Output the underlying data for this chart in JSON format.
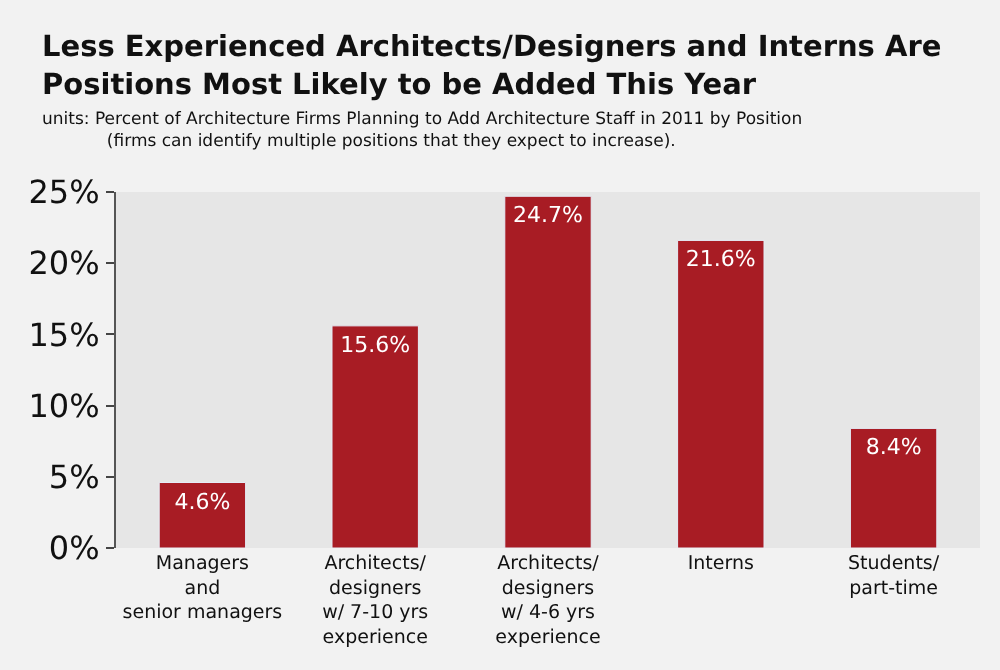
{
  "chart_data": {
    "type": "bar",
    "title": "Less Experienced Architects/Designers and Interns Are\nPositions Most Likely to be Added This Year",
    "subtitle": "units: Percent of Architecture Firms Planning to Add Architecture Staff in 2011 by Position\n(firms can identify multiple positions that they expect to increase).",
    "categories": [
      "Managers\nand\nsenior managers",
      "Architects/\ndesigners\nw/ 7-10 yrs\nexperience",
      "Architects/\ndesigners\nw/ 4-6 yrs\nexperience",
      "Interns",
      "Students/\npart-time"
    ],
    "values": [
      4.6,
      15.6,
      24.7,
      21.6,
      8.4
    ],
    "value_labels": [
      "4.6%",
      "15.6%",
      "24.7%",
      "21.6%",
      "8.4%"
    ],
    "color": "#a81c24",
    "ylim": [
      0,
      25
    ],
    "yticks": [
      {
        "value": 0,
        "label": "0%"
      },
      {
        "value": 5,
        "label": "5%"
      },
      {
        "value": 10,
        "label": "10%"
      },
      {
        "value": 15,
        "label": "15%"
      },
      {
        "value": 20,
        "label": "20%"
      },
      {
        "value": 25,
        "label": "25%"
      }
    ],
    "grid": false,
    "legend": false
  }
}
